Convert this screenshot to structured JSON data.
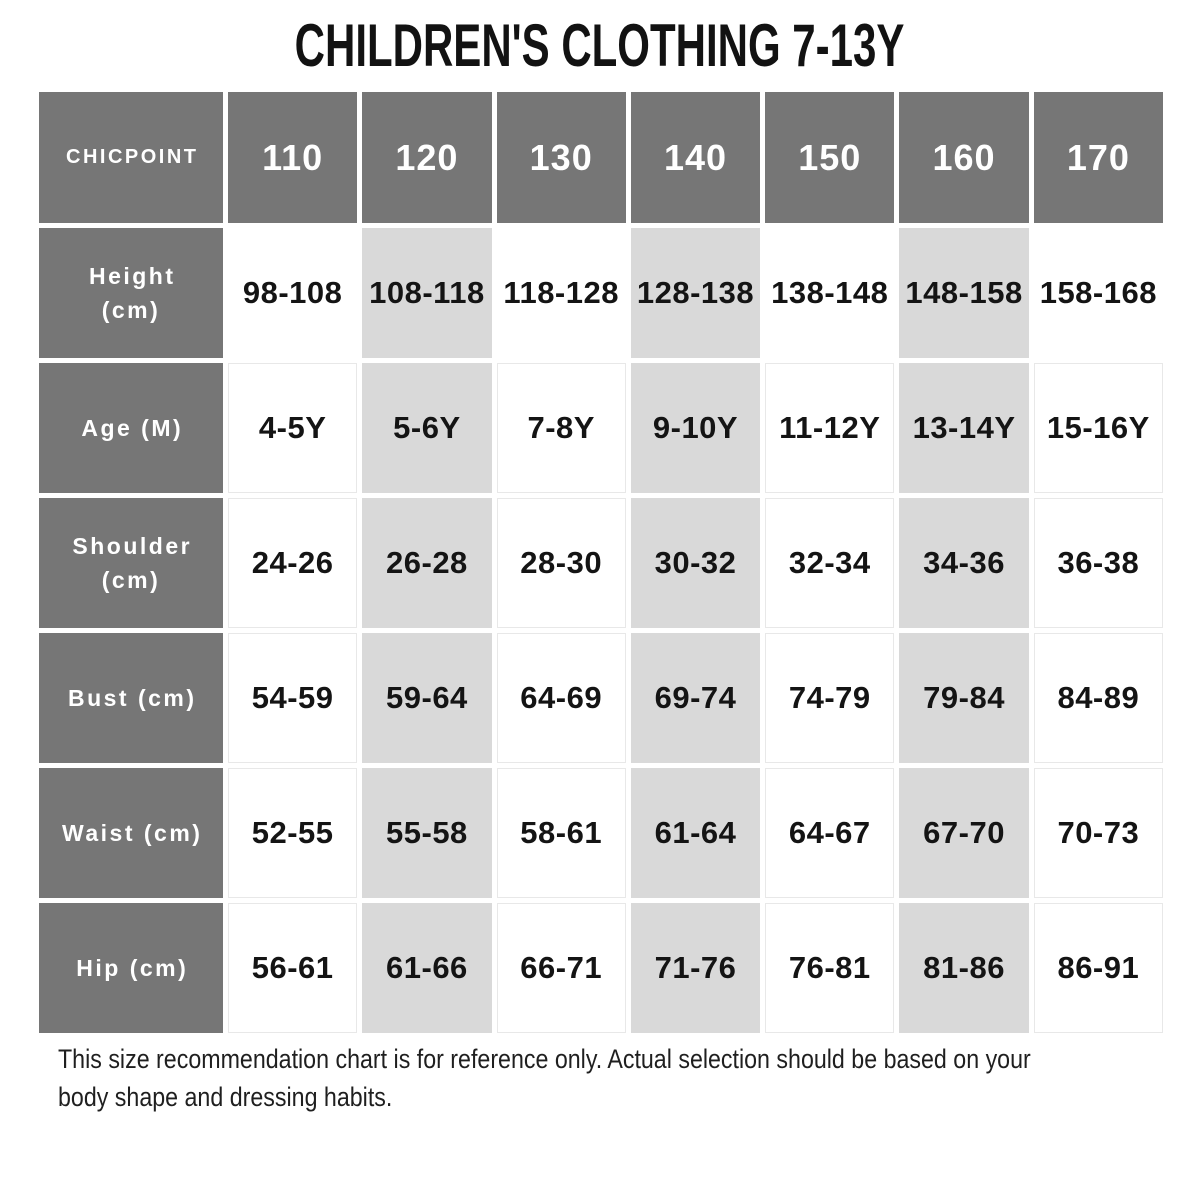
{
  "title": "CHILDREN'S CLOTHING 7-13Y",
  "chart_data": {
    "type": "table",
    "title": "CHILDREN'S CLOTHING 7-13Y",
    "brand_label": "CHICPOINT",
    "size_headers": [
      "110",
      "120",
      "130",
      "140",
      "150",
      "160",
      "170"
    ],
    "rows": [
      {
        "label": "Height (cm)",
        "values": [
          "98-108",
          "108-118",
          "118-128",
          "128-138",
          "138-148",
          "148-158",
          "158-168"
        ]
      },
      {
        "label": "Age (M)",
        "values": [
          "4-5Y",
          "5-6Y",
          "7-8Y",
          "9-10Y",
          "11-12Y",
          "13-14Y",
          "15-16Y"
        ]
      },
      {
        "label": "Shoulder (cm)",
        "values": [
          "24-26",
          "26-28",
          "28-30",
          "30-32",
          "32-34",
          "34-36",
          "36-38"
        ]
      },
      {
        "label": "Bust (cm)",
        "values": [
          "54-59",
          "59-64",
          "64-69",
          "69-74",
          "74-79",
          "79-84",
          "84-89"
        ]
      },
      {
        "label": "Waist (cm)",
        "values": [
          "52-55",
          "55-58",
          "58-61",
          "61-64",
          "64-67",
          "67-70",
          "70-73"
        ]
      },
      {
        "label": "Hip (cm)",
        "values": [
          "56-61",
          "61-66",
          "66-71",
          "71-76",
          "76-81",
          "81-86",
          "86-91"
        ]
      }
    ],
    "layout": {
      "stripe_columns": [
        "120",
        "140",
        "160"
      ],
      "header_bg": "#767676",
      "stripe_bg": "#d9d9d9",
      "cell_border": "#e8e8e8",
      "text_color": "#141414"
    }
  },
  "footer": {
    "line1": "This size recommendation chart is for reference only. Actual selection should be based on your",
    "line2": "body shape and dressing habits."
  }
}
